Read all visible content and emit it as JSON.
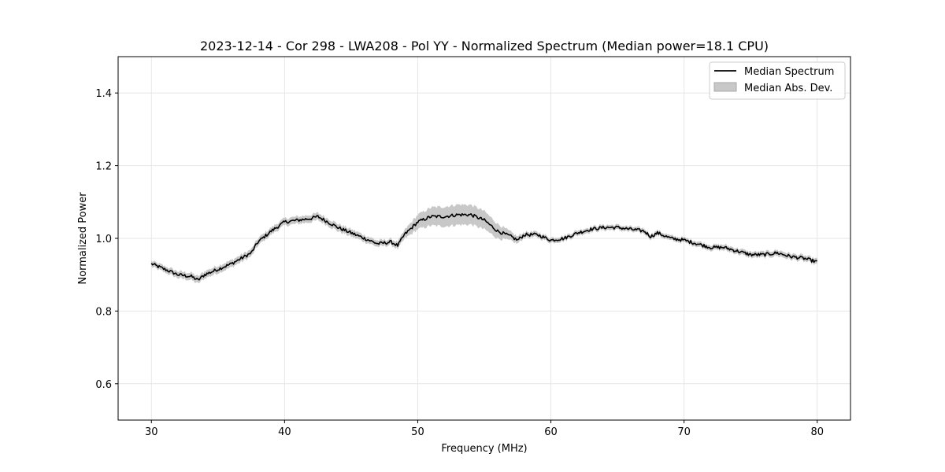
{
  "chart_data": {
    "type": "line",
    "title": "2023-12-14 - Cor 298 - LWA208 - Pol YY - Normalized Spectrum (Median power=18.1 CPU)",
    "xlabel": "Frequency (MHz)",
    "ylabel": "Normalized Power",
    "xlim": [
      27.5,
      82.5
    ],
    "ylim": [
      0.5,
      1.5
    ],
    "xticks": [
      30,
      40,
      50,
      60,
      70,
      80
    ],
    "yticks": [
      0.6,
      0.8,
      1.0,
      1.2,
      1.4
    ],
    "xtick_labels": [
      "30",
      "40",
      "50",
      "60",
      "70",
      "80"
    ],
    "ytick_labels": [
      "0.6",
      "0.8",
      "1.0",
      "1.2",
      "1.4"
    ],
    "grid": true,
    "legend_position": "upper right",
    "series": [
      {
        "name": "Median Spectrum",
        "color": "#000000",
        "x": [
          30,
          31,
          32,
          33,
          33.5,
          34,
          35,
          36,
          37,
          37.5,
          38,
          39,
          40,
          41,
          42,
          42.5,
          43,
          44,
          45,
          46,
          47,
          48,
          48.5,
          49,
          50,
          51,
          52,
          53,
          54,
          55,
          56,
          57,
          57.5,
          58,
          59,
          60,
          61,
          62,
          63,
          64,
          65,
          66,
          67,
          67.5,
          68,
          69,
          70,
          71,
          72,
          73,
          74,
          75,
          76,
          77,
          78,
          79,
          80
        ],
        "y": [
          0.93,
          0.915,
          0.9,
          0.895,
          0.885,
          0.9,
          0.915,
          0.93,
          0.95,
          0.96,
          0.99,
          1.02,
          1.045,
          1.05,
          1.055,
          1.06,
          1.05,
          1.03,
          1.015,
          1.0,
          0.985,
          0.99,
          0.98,
          1.01,
          1.045,
          1.06,
          1.06,
          1.065,
          1.065,
          1.05,
          1.02,
          1.005,
          0.995,
          1.01,
          1.01,
          0.995,
          1.0,
          1.015,
          1.025,
          1.03,
          1.03,
          1.025,
          1.02,
          1.005,
          1.015,
          1.0,
          0.995,
          0.985,
          0.975,
          0.975,
          0.965,
          0.955,
          0.955,
          0.96,
          0.95,
          0.945,
          0.935
        ]
      }
    ],
    "band": {
      "name": "Median Abs. Dev.",
      "color": "#c8c8c8",
      "x": [
        30,
        33,
        38,
        42,
        45,
        48,
        49,
        50,
        51,
        52,
        53,
        54,
        55,
        56,
        57,
        58,
        60,
        65,
        70,
        75,
        80
      ],
      "width": [
        0.008,
        0.01,
        0.01,
        0.01,
        0.01,
        0.008,
        0.012,
        0.02,
        0.025,
        0.027,
        0.028,
        0.027,
        0.025,
        0.02,
        0.012,
        0.008,
        0.007,
        0.007,
        0.007,
        0.008,
        0.008
      ]
    }
  }
}
